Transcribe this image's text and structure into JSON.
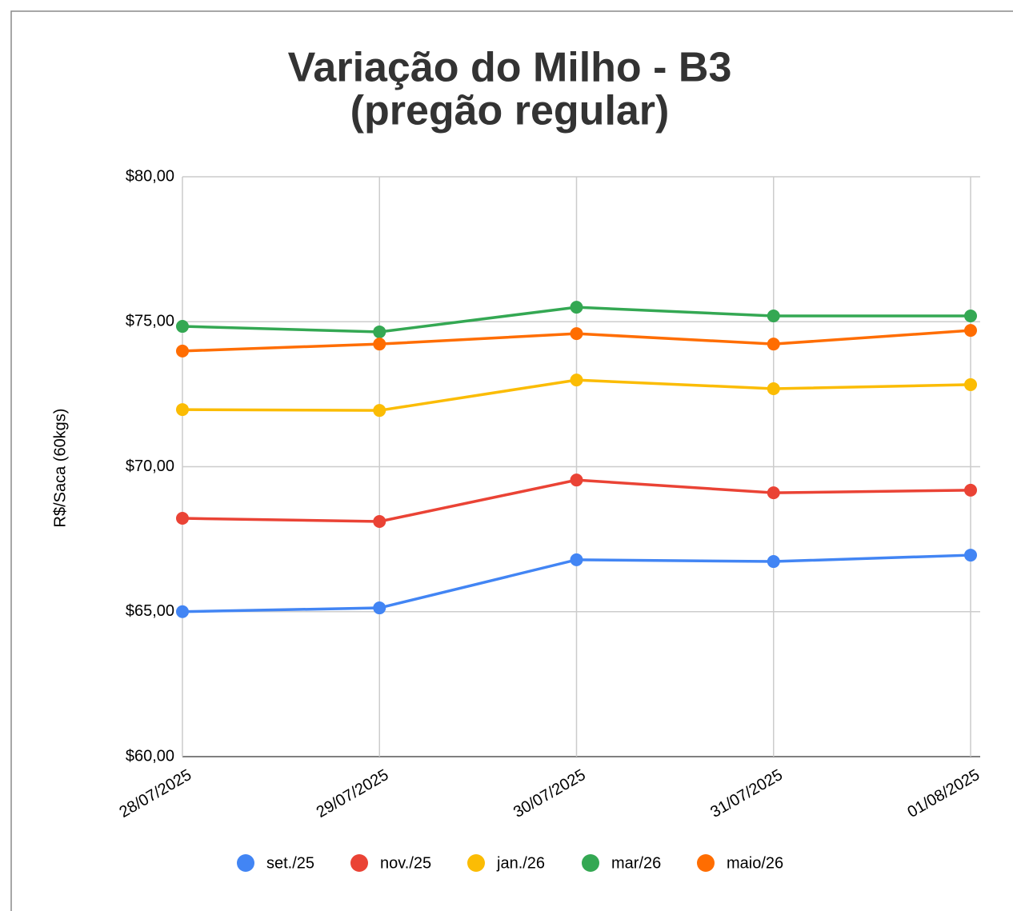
{
  "chart_data": {
    "type": "line",
    "title": "Variação do Milho - B3",
    "subtitle": "(pregão regular)",
    "ylabel": "R$/Saca (60kgs)",
    "categories": [
      "28/07/2025",
      "29/07/2025",
      "30/07/2025",
      "31/07/2025",
      "01/08/2025"
    ],
    "series": [
      {
        "name": "set./25",
        "color": "#4285f4",
        "values": [
          65.0,
          65.13,
          66.79,
          66.73,
          66.95
        ]
      },
      {
        "name": "nov./25",
        "color": "#ea4335",
        "values": [
          68.22,
          68.11,
          69.54,
          69.1,
          69.19
        ]
      },
      {
        "name": "jan./26",
        "color": "#fbbc04",
        "values": [
          71.97,
          71.94,
          72.99,
          72.69,
          72.83
        ]
      },
      {
        "name": "mar/26",
        "color": "#34a853",
        "values": [
          74.84,
          74.65,
          75.5,
          75.2,
          75.2
        ]
      },
      {
        "name": "maio/26",
        "color": "#ff6d01",
        "values": [
          73.99,
          74.23,
          74.59,
          74.23,
          74.7
        ]
      }
    ],
    "ylim": [
      60,
      80
    ],
    "yticks": [
      {
        "value": 60,
        "label": "$60,00"
      },
      {
        "value": 65,
        "label": "$65,00"
      },
      {
        "value": 70,
        "label": "$70,00"
      },
      {
        "value": 75,
        "label": "$75,00"
      },
      {
        "value": 80,
        "label": "$80,00"
      }
    ],
    "grid": true,
    "legend": "bottom"
  }
}
